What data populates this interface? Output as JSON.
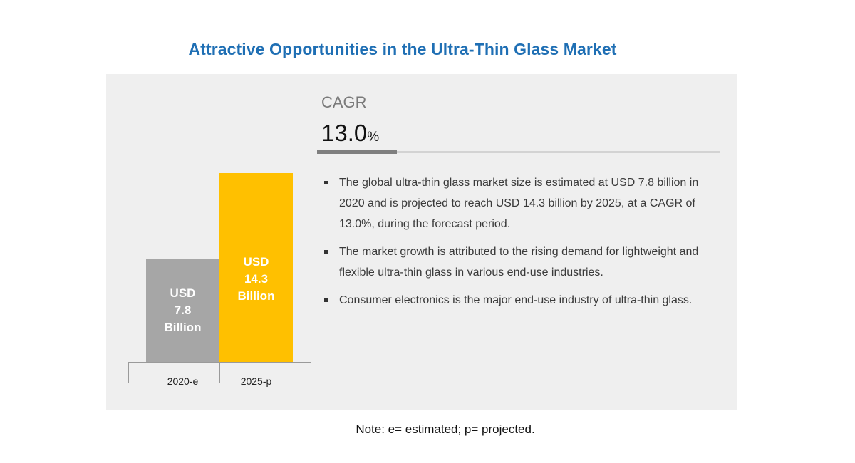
{
  "title": "Attractive Opportunities in the Ultra-Thin Glass Market",
  "cagr": {
    "label": "CAGR",
    "value": "13.0",
    "unit": "%"
  },
  "bullets": [
    "The global ultra-thin glass market size is estimated at USD 7.8 billion in 2020 and is projected to reach USD 14.3 billion by 2025, at a CAGR of 13.0%, during the forecast period.",
    "The market growth is attributed to the rising demand for lightweight and flexible ultra-thin glass in various end-use industries.",
    "Consumer electronics is the major end-use industry of ultra-thin glass."
  ],
  "note": "Note: e= estimated; p= projected.",
  "chart_data": {
    "type": "bar",
    "title": "",
    "xlabel": "",
    "ylabel": "",
    "categories": [
      "2020-e",
      "2025-p"
    ],
    "values": [
      7.8,
      14.3
    ],
    "data_labels": [
      [
        "USD",
        "7.8",
        "Billion"
      ],
      [
        "USD",
        "14.3",
        "Billion"
      ]
    ],
    "colors": [
      "#a6a6a6",
      "#ffc000"
    ],
    "unit": "USD Billion",
    "grid": false,
    "legend": "none"
  }
}
